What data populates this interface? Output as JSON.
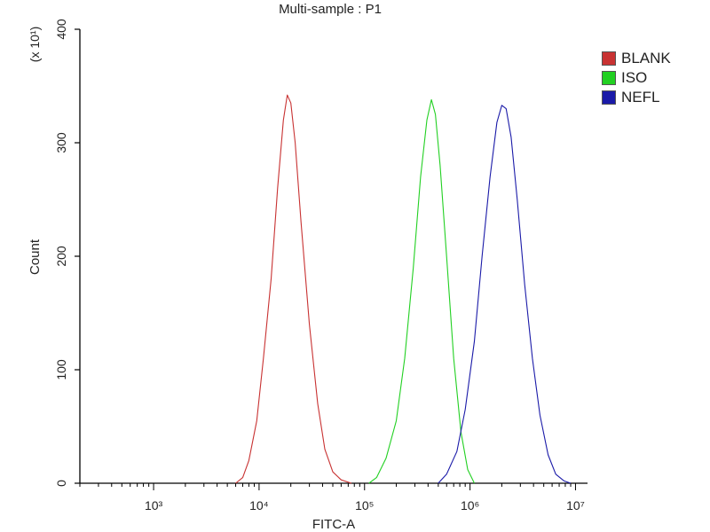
{
  "chart_data": {
    "type": "line",
    "title": "Multi-sample : P1",
    "xlabel": "FITC-A",
    "ylabel": "Count",
    "y_multiplier_label": "(x 10¹)",
    "x_scale": "log",
    "xlim": [
      200,
      13000000
    ],
    "ylim": [
      0,
      400
    ],
    "x_tick_labels": [
      "10³",
      "10⁴",
      "10⁵",
      "10⁶",
      "10⁷"
    ],
    "x_tick_values": [
      1000,
      10000,
      100000,
      1000000,
      10000000
    ],
    "y_tick_values": [
      0,
      100,
      200,
      300,
      400
    ],
    "legend_position": "right",
    "series": [
      {
        "name": "BLANK",
        "color": "#c83232",
        "x": [
          6000,
          7000,
          8000,
          9500,
          11000,
          13000,
          15000,
          17000,
          18500,
          20000,
          22000,
          25000,
          30000,
          36000,
          42000,
          50000,
          60000,
          75000
        ],
        "y": [
          0,
          5,
          20,
          55,
          110,
          180,
          260,
          320,
          342,
          335,
          300,
          230,
          140,
          70,
          30,
          10,
          3,
          0
        ]
      },
      {
        "name": "ISO",
        "color": "#22d022",
        "x": [
          110000,
          130000,
          160000,
          200000,
          240000,
          290000,
          340000,
          390000,
          430000,
          470000,
          520000,
          600000,
          700000,
          820000,
          950000,
          1100000
        ],
        "y": [
          0,
          5,
          22,
          55,
          110,
          190,
          270,
          320,
          338,
          325,
          280,
          200,
          110,
          45,
          12,
          0
        ]
      },
      {
        "name": "NEFL",
        "color": "#1a1aa8",
        "x": [
          500000,
          600000,
          750000,
          900000,
          1100000,
          1300000,
          1550000,
          1800000,
          2000000,
          2200000,
          2450000,
          2800000,
          3300000,
          3900000,
          4600000,
          5500000,
          6500000,
          7800000,
          9000000
        ],
        "y": [
          0,
          8,
          28,
          65,
          125,
          200,
          270,
          318,
          333,
          330,
          305,
          250,
          175,
          110,
          60,
          25,
          8,
          2,
          0
        ]
      }
    ]
  }
}
